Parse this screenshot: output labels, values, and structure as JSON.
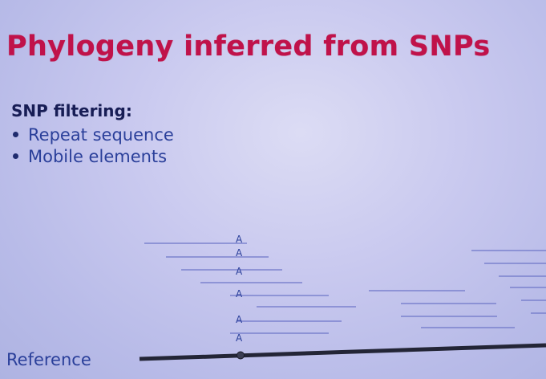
{
  "slide": {
    "title": "Phylogeny inferred from SNPs",
    "subtitle": "SNP filtering:",
    "bullets": [
      "Repeat sequence",
      "Mobile elements"
    ],
    "reference_label": "Reference",
    "snp_base": "A"
  },
  "colors": {
    "title": "#c0124a",
    "subtitle": "#171d55",
    "body_text": "#2a3f9a",
    "read_line": "#6e76c8",
    "reference_line": "#232536",
    "background": "#c9c9ef"
  }
}
